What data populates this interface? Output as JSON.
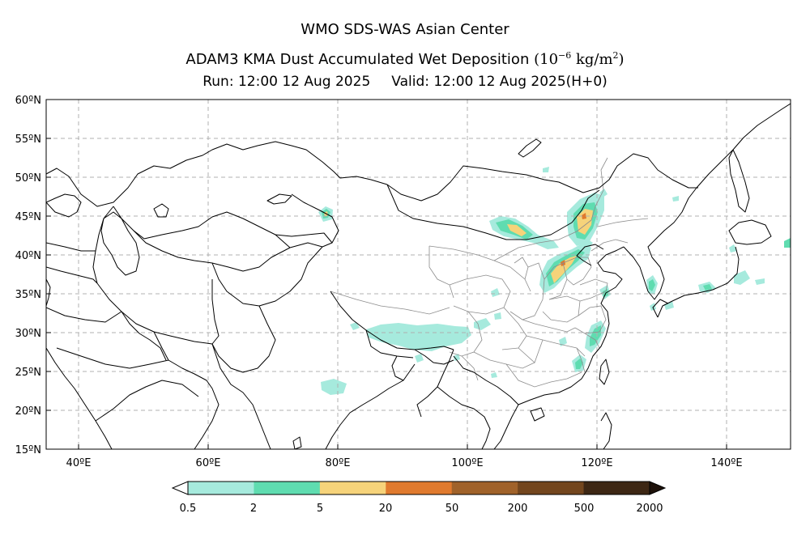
{
  "titles": {
    "line1": "WMO SDS-WAS Asian Center",
    "line2_main": "ADAM3 KMA Dust Accumulated Wet Deposition",
    "unit_open": "(10",
    "unit_exp": "−6",
    "unit_mid": " kg/m",
    "unit_exp2": "2",
    "unit_close": ")",
    "run": "Run: 12:00 12 Aug 2025",
    "valid": "Valid: 12:00 12 Aug 2025(H+0)"
  },
  "axes": {
    "lat_labels": [
      "60ºN",
      "55ºN",
      "50ºN",
      "45ºN",
      "40ºN",
      "35ºN",
      "30ºN",
      "25ºN",
      "20ºN",
      "15ºN"
    ],
    "lon_labels": [
      "40ºE",
      "60ºE",
      "80ºE",
      "100ºE",
      "120ºE",
      "140ºE"
    ]
  },
  "colorbar": {
    "labels": [
      "0.5",
      "2",
      "5",
      "20",
      "50",
      "200",
      "500",
      "2000"
    ],
    "colors": [
      "#a6eadd",
      "#5fdcb0",
      "#f6d37a",
      "#e07a2e",
      "#a0622a",
      "#73461e",
      "#3d2714"
    ]
  },
  "palette": {
    "coast": "#000000",
    "province": "#8c8c8c",
    "grid": "#b0b0b0"
  }
}
